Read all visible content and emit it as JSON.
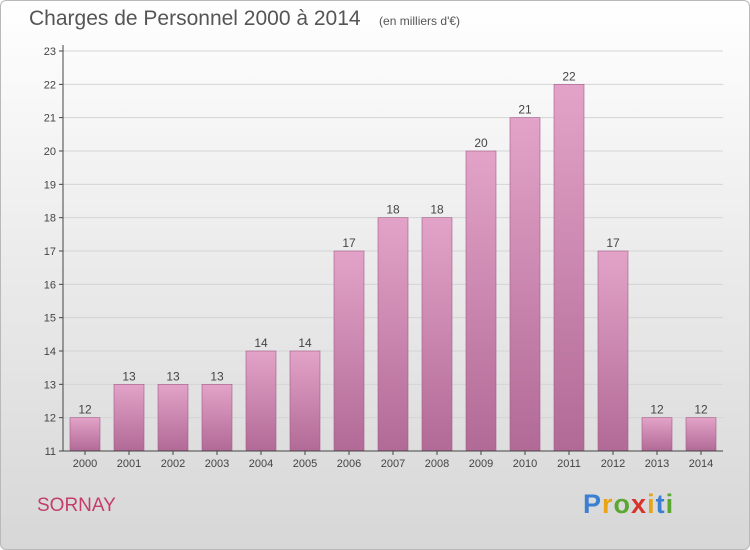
{
  "header": {
    "title": "Charges de Personnel 2000 à 2014",
    "subtitle": "(en milliers d'€)"
  },
  "footer": {
    "location": "SORNAY",
    "brand": "Proxiti",
    "brand_colors": [
      "#3a7fd1",
      "#e8a317",
      "#5aa832",
      "#d8332a",
      "#e8a317",
      "#3a7fd1",
      "#5aa832"
    ]
  },
  "colors": {
    "bar_top": "#e3a3c8",
    "bar_bottom": "#b16a96",
    "axis": "#444444",
    "grid": "#d4d4d4",
    "label": "#444444"
  },
  "chart_data": {
    "type": "bar",
    "categories": [
      "2000",
      "2001",
      "2002",
      "2003",
      "2004",
      "2005",
      "2006",
      "2007",
      "2008",
      "2009",
      "2010",
      "2011",
      "2012",
      "2013",
      "2014"
    ],
    "values": [
      12,
      13,
      13,
      13,
      14,
      14,
      17,
      18,
      18,
      20,
      21,
      22,
      17,
      12,
      12
    ],
    "ylim": [
      11,
      23
    ],
    "yticks": [
      11,
      12,
      13,
      14,
      15,
      16,
      17,
      18,
      19,
      20,
      21,
      22,
      23
    ],
    "grid": true,
    "legend": "none"
  }
}
